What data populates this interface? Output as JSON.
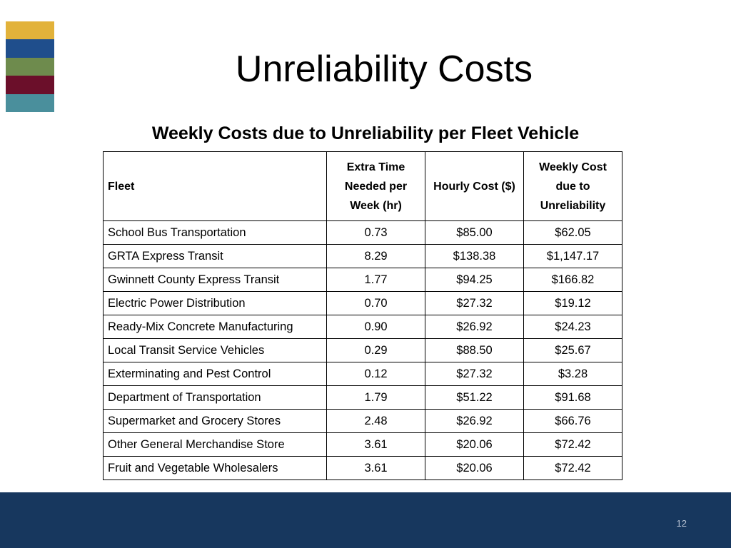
{
  "slide": {
    "title": "Unreliability Costs",
    "subtitle": "Weekly Costs due to Unreliability per Fleet Vehicle",
    "page_number": "12"
  },
  "decoration": {
    "stripe_colors": [
      "#e2b23a",
      "#1f4e8c",
      "#6e8b4d",
      "#6b0f2a",
      "#4a8f9c"
    ],
    "footer_color": "#17375e"
  },
  "table": {
    "headers": {
      "fleet": "Fleet",
      "extra_time": "Extra Time Needed per Week (hr)",
      "hourly_cost": "Hourly Cost ($)",
      "weekly_cost": "Weekly Cost due to Unreliability"
    },
    "rows": [
      {
        "fleet": "School Bus Transportation",
        "extra_time": "0.73",
        "hourly_cost": "$85.00",
        "weekly_cost": "$62.05"
      },
      {
        "fleet": "GRTA Express Transit",
        "extra_time": "8.29",
        "hourly_cost": "$138.38",
        "weekly_cost": "$1,147.17"
      },
      {
        "fleet": "Gwinnett County Express Transit",
        "extra_time": "1.77",
        "hourly_cost": "$94.25",
        "weekly_cost": "$166.82"
      },
      {
        "fleet": "Electric Power Distribution",
        "extra_time": "0.70",
        "hourly_cost": "$27.32",
        "weekly_cost": "$19.12"
      },
      {
        "fleet": "Ready-Mix Concrete Manufacturing",
        "extra_time": "0.90",
        "hourly_cost": "$26.92",
        "weekly_cost": "$24.23"
      },
      {
        "fleet": "Local Transit Service Vehicles",
        "extra_time": "0.29",
        "hourly_cost": "$88.50",
        "weekly_cost": "$25.67"
      },
      {
        "fleet": "Exterminating and Pest Control",
        "extra_time": "0.12",
        "hourly_cost": "$27.32",
        "weekly_cost": "$3.28"
      },
      {
        "fleet": "Department of Transportation",
        "extra_time": "1.79",
        "hourly_cost": "$51.22",
        "weekly_cost": "$91.68"
      },
      {
        "fleet": "Supermarket and Grocery Stores",
        "extra_time": "2.48",
        "hourly_cost": "$26.92",
        "weekly_cost": "$66.76"
      },
      {
        "fleet": "Other General Merchandise Store",
        "extra_time": "3.61",
        "hourly_cost": "$20.06",
        "weekly_cost": "$72.42"
      },
      {
        "fleet": "Fruit and Vegetable Wholesalers",
        "extra_time": "3.61",
        "hourly_cost": "$20.06",
        "weekly_cost": "$72.42"
      }
    ]
  }
}
